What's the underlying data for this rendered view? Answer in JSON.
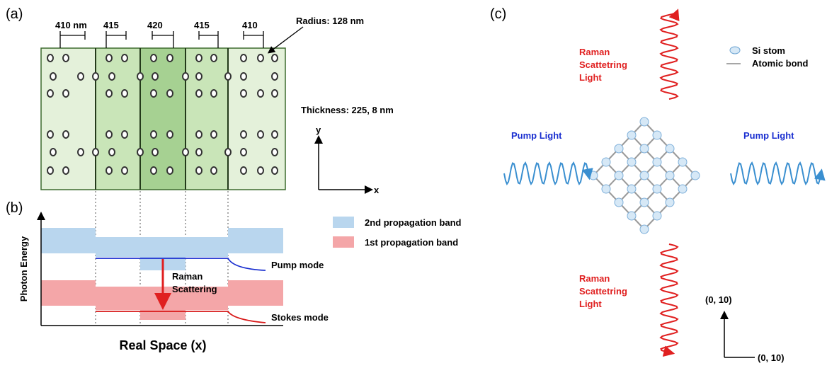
{
  "panel_a": {
    "label": "(a)",
    "spacings": [
      "410 nm",
      "415",
      "420",
      "415",
      "410"
    ],
    "radius": "Radius: 128 nm",
    "thickness": "Thickness: 225, 8 nm",
    "axis_y": "y",
    "axis_x": "x"
  },
  "panel_b": {
    "label": "(b)",
    "legend": [
      "2nd propagation band",
      "1st  propagation band"
    ],
    "pump_mode": "Pump mode",
    "raman": [
      "Raman",
      "Scattering"
    ],
    "stokes_mode": "Stokes mode",
    "y_label": "Photon Energy",
    "x_label": "Real Space (x)"
  },
  "panel_c": {
    "label": "(c)",
    "raman_top": [
      "Raman",
      "Scattetring",
      "Light"
    ],
    "raman_bottom": [
      "Raman",
      "Scattetring",
      "Light"
    ],
    "legend": [
      "Si stom",
      "Atomic bond"
    ],
    "pump_left": "Pump Light",
    "pump_right": "Pump Light",
    "axis_v": "(0, 10)",
    "axis_h": "(0, 10)"
  }
}
